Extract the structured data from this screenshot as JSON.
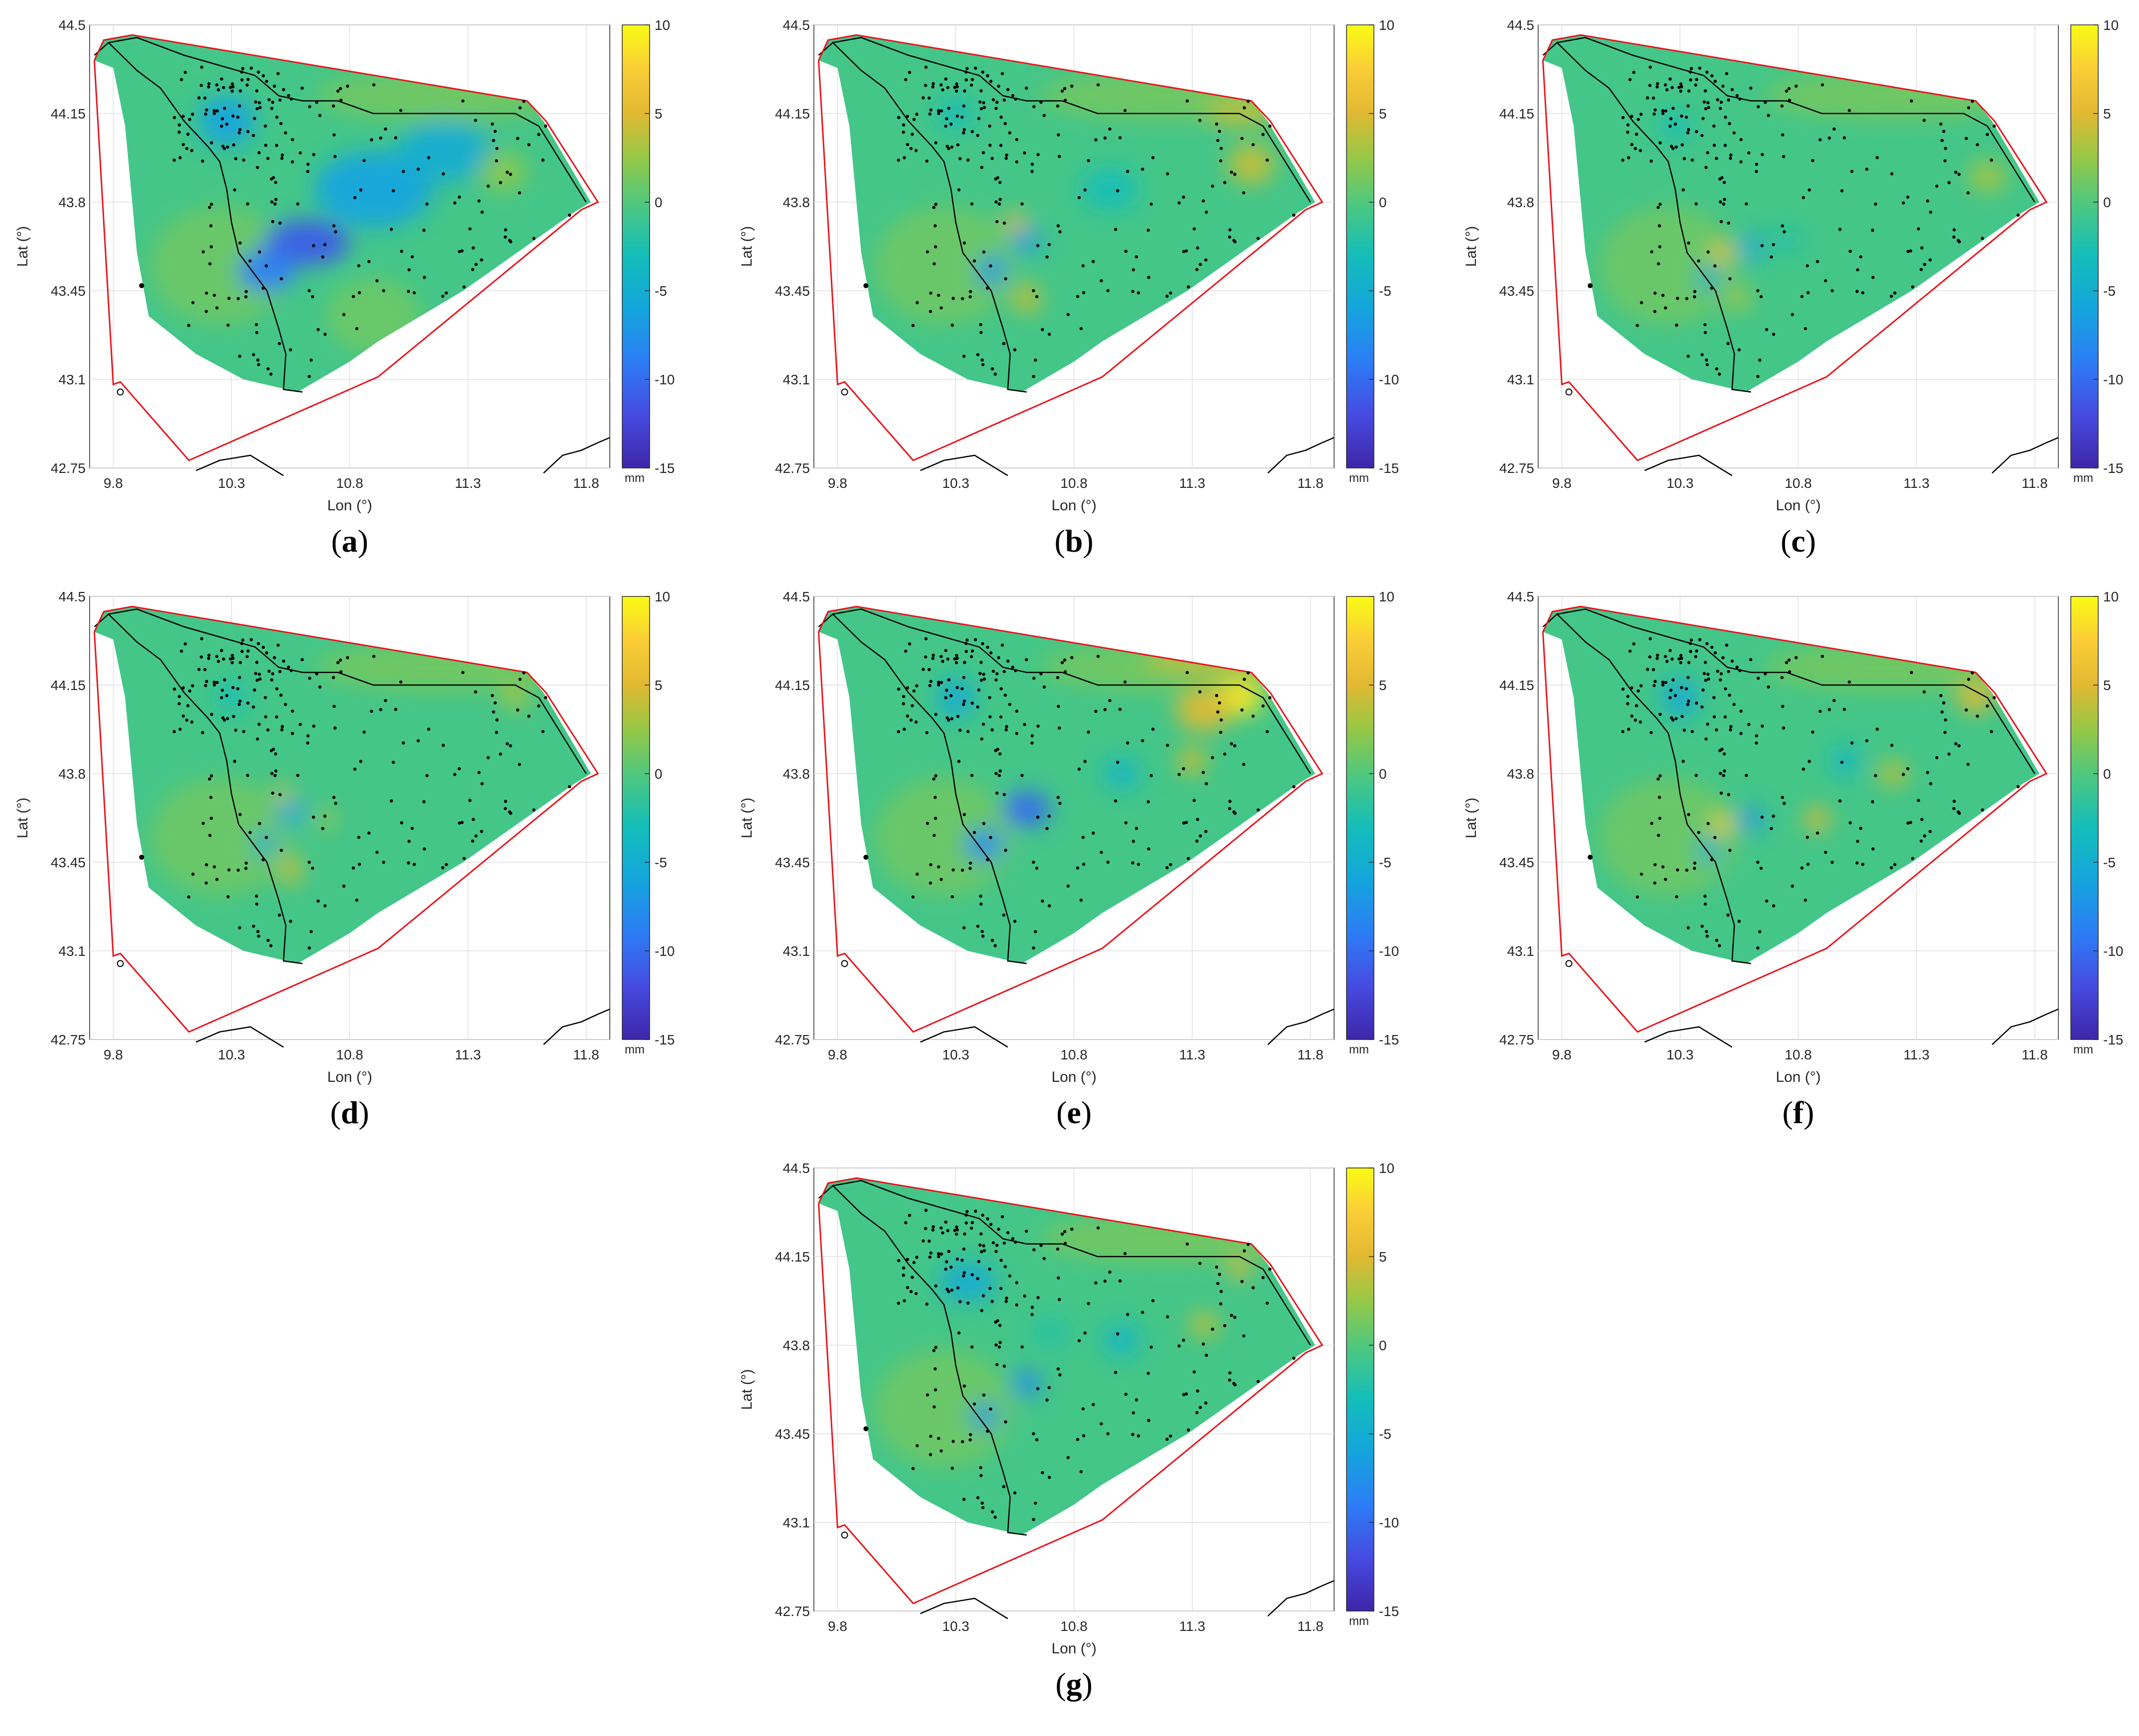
{
  "figure": {
    "x_axis_label": "Lon (°)",
    "y_axis_label": "Lat (°)",
    "lon_ticks": [
      "9.8",
      "10.3",
      "10.8",
      "11.3",
      "11.8"
    ],
    "lat_ticks": [
      "44.5",
      "44.15",
      "43.8",
      "43.45",
      "43.1",
      "42.75"
    ],
    "colorbar": {
      "unit": "mm",
      "ticks": [
        "10",
        "5",
        "0",
        "-5",
        "-10",
        "-15"
      ]
    },
    "colors": {
      "boundary": "#e8141c",
      "coast": "#000000",
      "grid": "#e0e0e0"
    }
  },
  "panels": [
    {
      "letter": "a"
    },
    {
      "letter": "b"
    },
    {
      "letter": "c"
    },
    {
      "letter": "d"
    },
    {
      "letter": "e"
    },
    {
      "letter": "f"
    },
    {
      "letter": "g"
    }
  ],
  "chart_data": {
    "type": "heatmap",
    "description_units": "mm",
    "lon_range": [
      9.7,
      11.9
    ],
    "lat_range": [
      42.75,
      44.5
    ],
    "color_range": [
      -15,
      10
    ],
    "panels": [
      {
        "letter": "a",
        "anomalies": [
          {
            "lon": 10.62,
            "lat": 43.64,
            "value": -11,
            "sx": 0.18,
            "sy": 0.09
          },
          {
            "lon": 10.45,
            "lat": 43.53,
            "value": -9,
            "sx": 0.12,
            "sy": 0.08
          },
          {
            "lon": 10.9,
            "lat": 43.85,
            "value": -6,
            "sx": 0.25,
            "sy": 0.15
          },
          {
            "lon": 11.2,
            "lat": 44.0,
            "value": -5,
            "sx": 0.2,
            "sy": 0.12
          },
          {
            "lon": 10.28,
            "lat": 44.12,
            "value": -6,
            "sx": 0.12,
            "sy": 0.1
          },
          {
            "lon": 11.45,
            "lat": 43.92,
            "value": 2,
            "sx": 0.1,
            "sy": 0.08
          },
          {
            "lon": 10.9,
            "lat": 43.35,
            "value": 1,
            "sx": 0.2,
            "sy": 0.15
          }
        ]
      },
      {
        "letter": "b",
        "anomalies": [
          {
            "lon": 10.6,
            "lat": 43.65,
            "value": -7,
            "sx": 0.06,
            "sy": 0.05
          },
          {
            "lon": 10.45,
            "lat": 43.53,
            "value": -7,
            "sx": 0.06,
            "sy": 0.06
          },
          {
            "lon": 10.55,
            "lat": 43.72,
            "value": 5,
            "sx": 0.05,
            "sy": 0.04
          },
          {
            "lon": 10.6,
            "lat": 43.42,
            "value": 4,
            "sx": 0.06,
            "sy": 0.06
          },
          {
            "lon": 11.55,
            "lat": 43.95,
            "value": 4,
            "sx": 0.1,
            "sy": 0.08
          },
          {
            "lon": 11.5,
            "lat": 44.15,
            "value": 4,
            "sx": 0.15,
            "sy": 0.05
          },
          {
            "lon": 10.95,
            "lat": 43.85,
            "value": -3,
            "sx": 0.12,
            "sy": 0.08
          },
          {
            "lon": 10.3,
            "lat": 44.15,
            "value": -3,
            "sx": 0.08,
            "sy": 0.06
          }
        ]
      },
      {
        "letter": "c",
        "anomalies": [
          {
            "lon": 10.48,
            "lat": 43.6,
            "value": 6,
            "sx": 0.05,
            "sy": 0.04
          },
          {
            "lon": 10.6,
            "lat": 43.62,
            "value": -6,
            "sx": 0.05,
            "sy": 0.05
          },
          {
            "lon": 10.42,
            "lat": 43.5,
            "value": -5,
            "sx": 0.05,
            "sy": 0.05
          },
          {
            "lon": 10.55,
            "lat": 43.42,
            "value": 3,
            "sx": 0.05,
            "sy": 0.05
          },
          {
            "lon": 11.6,
            "lat": 43.9,
            "value": 3,
            "sx": 0.08,
            "sy": 0.06
          },
          {
            "lon": 10.75,
            "lat": 43.65,
            "value": -3,
            "sx": 0.05,
            "sy": 0.04
          },
          {
            "lon": 10.28,
            "lat": 44.1,
            "value": -3,
            "sx": 0.06,
            "sy": 0.06
          }
        ]
      },
      {
        "letter": "d",
        "anomalies": [
          {
            "lon": 10.55,
            "lat": 43.65,
            "value": -6,
            "sx": 0.06,
            "sy": 0.05
          },
          {
            "lon": 10.44,
            "lat": 43.52,
            "value": -5,
            "sx": 0.05,
            "sy": 0.05
          },
          {
            "lon": 10.52,
            "lat": 43.72,
            "value": 4,
            "sx": 0.04,
            "sy": 0.04
          },
          {
            "lon": 10.55,
            "lat": 43.42,
            "value": 4,
            "sx": 0.05,
            "sy": 0.06
          },
          {
            "lon": 11.5,
            "lat": 44.1,
            "value": 3,
            "sx": 0.06,
            "sy": 0.05
          },
          {
            "lon": 10.7,
            "lat": 43.62,
            "value": 3,
            "sx": 0.04,
            "sy": 0.04
          },
          {
            "lon": 10.3,
            "lat": 44.1,
            "value": -3,
            "sx": 0.06,
            "sy": 0.06
          }
        ]
      },
      {
        "letter": "e",
        "anomalies": [
          {
            "lon": 10.6,
            "lat": 43.66,
            "value": -10,
            "sx": 0.1,
            "sy": 0.07
          },
          {
            "lon": 10.42,
            "lat": 43.52,
            "value": -8,
            "sx": 0.08,
            "sy": 0.06
          },
          {
            "lon": 11.5,
            "lat": 44.1,
            "value": 9,
            "sx": 0.1,
            "sy": 0.07
          },
          {
            "lon": 11.35,
            "lat": 44.05,
            "value": 5,
            "sx": 0.12,
            "sy": 0.08
          },
          {
            "lon": 11.3,
            "lat": 43.85,
            "value": 4,
            "sx": 0.06,
            "sy": 0.06
          },
          {
            "lon": 10.3,
            "lat": 44.1,
            "value": -5,
            "sx": 0.08,
            "sy": 0.08
          },
          {
            "lon": 11.0,
            "lat": 43.8,
            "value": -4,
            "sx": 0.08,
            "sy": 0.06
          },
          {
            "lon": 11.4,
            "lat": 44.25,
            "value": 4,
            "sx": 0.3,
            "sy": 0.05
          }
        ]
      },
      {
        "letter": "f",
        "anomalies": [
          {
            "lon": 10.48,
            "lat": 43.6,
            "value": 7,
            "sx": 0.05,
            "sy": 0.04
          },
          {
            "lon": 10.6,
            "lat": 43.62,
            "value": -7,
            "sx": 0.05,
            "sy": 0.05
          },
          {
            "lon": 10.42,
            "lat": 43.5,
            "value": -5,
            "sx": 0.05,
            "sy": 0.05
          },
          {
            "lon": 10.88,
            "lat": 43.62,
            "value": 5,
            "sx": 0.05,
            "sy": 0.05
          },
          {
            "lon": 11.55,
            "lat": 44.1,
            "value": 5,
            "sx": 0.08,
            "sy": 0.06
          },
          {
            "lon": 11.2,
            "lat": 43.8,
            "value": 4,
            "sx": 0.06,
            "sy": 0.05
          },
          {
            "lon": 10.3,
            "lat": 44.1,
            "value": -5,
            "sx": 0.08,
            "sy": 0.08
          },
          {
            "lon": 11.0,
            "lat": 43.85,
            "value": -4,
            "sx": 0.06,
            "sy": 0.06
          }
        ]
      },
      {
        "letter": "g",
        "anomalies": [
          {
            "lon": 10.6,
            "lat": 43.65,
            "value": -8,
            "sx": 0.06,
            "sy": 0.05
          },
          {
            "lon": 10.42,
            "lat": 43.52,
            "value": -7,
            "sx": 0.06,
            "sy": 0.05
          },
          {
            "lon": 10.35,
            "lat": 44.05,
            "value": -5,
            "sx": 0.12,
            "sy": 0.08
          },
          {
            "lon": 11.5,
            "lat": 44.1,
            "value": 5,
            "sx": 0.05,
            "sy": 0.04
          },
          {
            "lon": 11.35,
            "lat": 43.88,
            "value": 4,
            "sx": 0.06,
            "sy": 0.05
          },
          {
            "lon": 11.0,
            "lat": 43.82,
            "value": -4,
            "sx": 0.08,
            "sy": 0.06
          },
          {
            "lon": 10.7,
            "lat": 43.85,
            "value": -2,
            "sx": 0.08,
            "sy": 0.06
          }
        ]
      }
    ]
  }
}
